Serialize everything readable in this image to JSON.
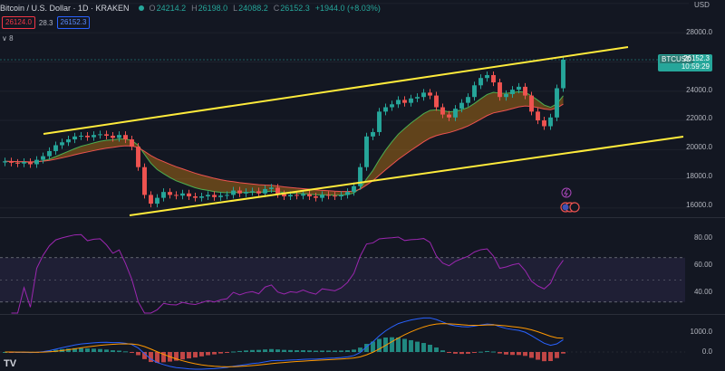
{
  "header": {
    "title": "Bitcoin / U.S. Dollar · 1D · KRAKEN",
    "o_label": "O",
    "o_val": "24214.2",
    "h_label": "H",
    "h_val": "26198.0",
    "l_label": "L",
    "l_val": "24088.2",
    "c_label": "C",
    "c_val": "26152.3",
    "change": "+1944.0 (+8.03%)"
  },
  "indicators": {
    "bid": "26124.0",
    "spread": "28.3",
    "ask": "26152.3",
    "collapse": "∨ 8"
  },
  "price_axis": {
    "currency": "USD",
    "ticks": [
      "28000.0",
      "26000.0",
      "24000.0",
      "22000.0",
      "20000.0",
      "18000.0",
      "16000.0"
    ]
  },
  "price_tag": {
    "symbol": "BTCUSD",
    "price": "26152.3",
    "countdown": "10:59:29"
  },
  "rsi_axis": {
    "ticks": [
      "80.00",
      "60.00",
      "40.00"
    ]
  },
  "macd_axis": {
    "ticks": [
      "1000.0",
      "0.0"
    ]
  },
  "logo": "TV",
  "colors": {
    "up": "#26a69a",
    "down": "#ef5350",
    "trend": "#ffeb3b",
    "rsi": "#9c27b0",
    "macd": "#2962ff",
    "signal": "#ff9800"
  },
  "chart_data": {
    "type": "candlestick",
    "series_closes": [
      19200,
      19100,
      19050,
      19150,
      19000,
      19300,
      19550,
      19900,
      20300,
      20500,
      20700,
      20900,
      20950,
      20850,
      21000,
      21050,
      20950,
      20800,
      21000,
      20700,
      20200,
      18800,
      16900,
      16300,
      16700,
      17100,
      16900,
      16850,
      17000,
      16800,
      16700,
      16800,
      16900,
      16750,
      16850,
      16900,
      17200,
      17000,
      17100,
      17150,
      17000,
      17300,
      17400,
      16950,
      16800,
      16900,
      16850,
      16950,
      16800,
      16700,
      16900,
      16850,
      16800,
      16900,
      17100,
      17500,
      18800,
      20900,
      21200,
      22600,
      22900,
      23100,
      23400,
      23200,
      23500,
      23600,
      23900,
      23700,
      22900,
      22400,
      22200,
      22800,
      23200,
      23600,
      24400,
      24900,
      25100,
      24600,
      23600,
      23800,
      24100,
      24300,
      23700,
      22600,
      22000,
      21600,
      22200,
      24200,
      26152
    ],
    "ylim": [
      15500,
      29000
    ],
    "indicators": [
      "RSI",
      "MACD",
      "Moving Average Ribbon"
    ]
  }
}
